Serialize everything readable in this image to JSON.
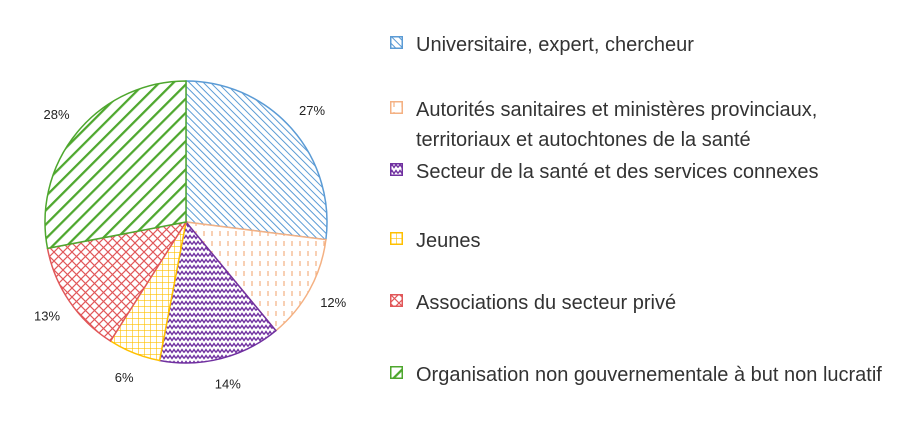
{
  "chart_data": {
    "type": "pie",
    "title": "",
    "legend_position": "right",
    "slices": [
      {
        "label": "Universitaire, expert, chercheur",
        "value": 27,
        "display": "27%",
        "color": "#5b9bd5",
        "pattern": "diag-dense-right"
      },
      {
        "label": "Autorités sanitaires et ministères provinciaux, territoriaux et autochtones de la santé",
        "value": 12,
        "display": "12%",
        "color": "#f4b183",
        "pattern": "dashed-vertical"
      },
      {
        "label": "Secteur de la santé et des services connexes",
        "value": 14,
        "display": "14%",
        "color": "#7030a0",
        "pattern": "wave"
      },
      {
        "label": "Jeunes",
        "value": 6,
        "display": "6%",
        "color": "#ffc000",
        "pattern": "small-grid"
      },
      {
        "label": "Associations du secteur privé",
        "value": 13,
        "display": "13%",
        "color": "#e15759",
        "pattern": "diag-cross"
      },
      {
        "label": "Organisation non gouvernementale à but non lucratif",
        "value": 28,
        "display": "28%",
        "color": "#4ea72e",
        "pattern": "diag-wide-left"
      }
    ]
  }
}
